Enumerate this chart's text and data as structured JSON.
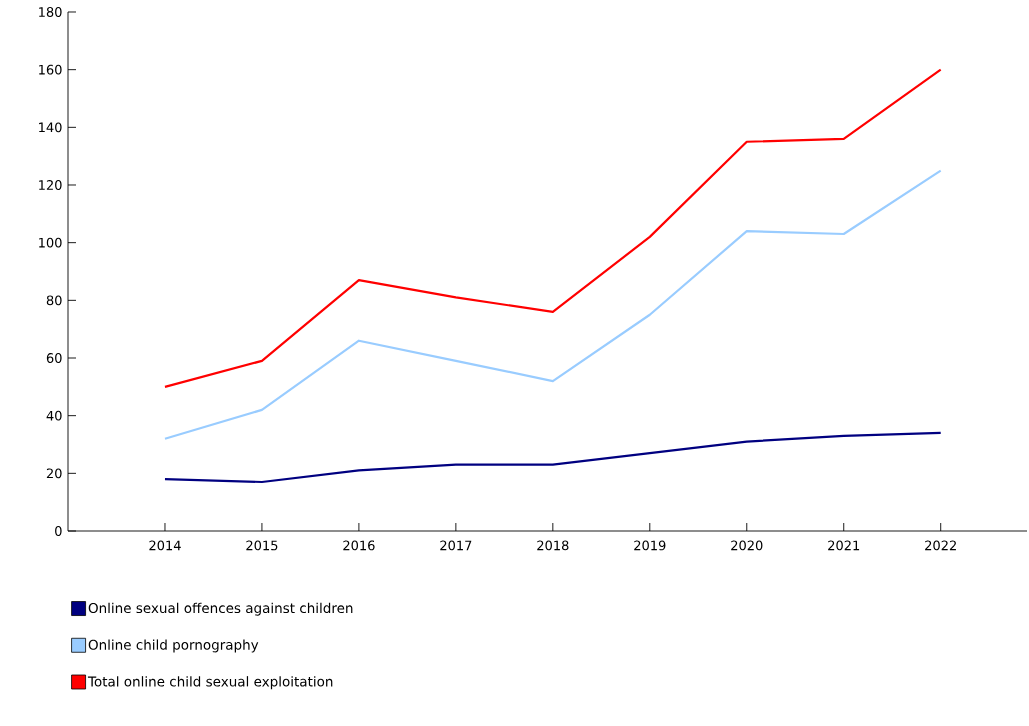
{
  "chart_data": {
    "type": "line",
    "categories": [
      "2014",
      "2015",
      "2016",
      "2017",
      "2018",
      "2019",
      "2020",
      "2021",
      "2022"
    ],
    "series": [
      {
        "name": "Online sexual offences against children",
        "color": "#000080",
        "values": [
          18,
          17,
          21,
          23,
          23,
          27,
          31,
          33,
          34
        ]
      },
      {
        "name": "Online child pornography",
        "color": "#99ccff",
        "values": [
          32,
          42,
          66,
          59,
          52,
          75,
          104,
          103,
          125
        ]
      },
      {
        "name": "Total online child sexual exploitation",
        "color": "#ff0000",
        "values": [
          50,
          59,
          87,
          81,
          76,
          102,
          135,
          136,
          160
        ]
      }
    ],
    "ylim": [
      0,
      180
    ],
    "yticks": [
      0,
      20,
      40,
      60,
      80,
      100,
      120,
      140,
      160,
      180
    ],
    "grid": false,
    "legend": "bottom",
    "marker": "none",
    "line_style": "solid"
  }
}
